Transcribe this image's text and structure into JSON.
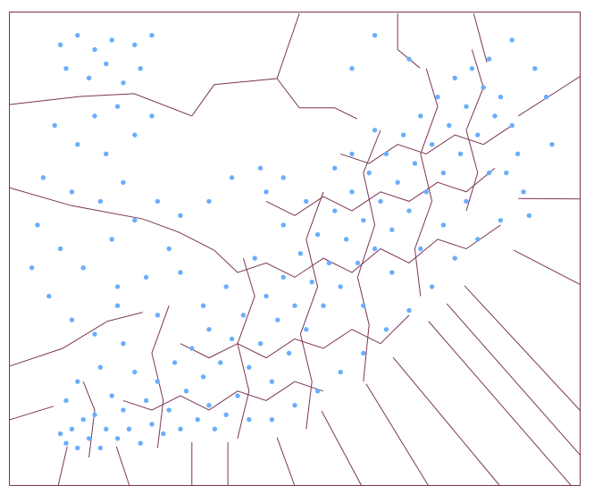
{
  "chart_data": {
    "type": "scatter",
    "title": "",
    "xlabel": "",
    "ylabel": "",
    "xlim": [
      0,
      100
    ],
    "ylim": [
      0,
      100
    ],
    "grid": false,
    "axes_visible": false,
    "overlay": "voronoi-cell-boundaries",
    "colors": {
      "points": "#6aaefc",
      "edges": "#7b3559",
      "frame": "#7b3559"
    },
    "points": [
      [
        10,
        9
      ],
      [
        12,
        8
      ],
      [
        14,
        10
      ],
      [
        11,
        12
      ],
      [
        16,
        8
      ],
      [
        9,
        11
      ],
      [
        13,
        14
      ],
      [
        17,
        12
      ],
      [
        19,
        10
      ],
      [
        15,
        15
      ],
      [
        21,
        12
      ],
      [
        23,
        9
      ],
      [
        20,
        16
      ],
      [
        25,
        13
      ],
      [
        18,
        19
      ],
      [
        24,
        18
      ],
      [
        27,
        11
      ],
      [
        28,
        16
      ],
      [
        30,
        12
      ],
      [
        26,
        22
      ],
      [
        31,
        20
      ],
      [
        33,
        14
      ],
      [
        35,
        17
      ],
      [
        22,
        24
      ],
      [
        29,
        26
      ],
      [
        34,
        23
      ],
      [
        36,
        12
      ],
      [
        38,
        15
      ],
      [
        32,
        29
      ],
      [
        37,
        26
      ],
      [
        40,
        19
      ],
      [
        42,
        14
      ],
      [
        39,
        31
      ],
      [
        35,
        33
      ],
      [
        42,
        25
      ],
      [
        44,
        30
      ],
      [
        41,
        36
      ],
      [
        46,
        22
      ],
      [
        47,
        35
      ],
      [
        45,
        40
      ],
      [
        49,
        28
      ],
      [
        50,
        38
      ],
      [
        48,
        44
      ],
      [
        52,
        33
      ],
      [
        53,
        43
      ],
      [
        51,
        49
      ],
      [
        55,
        38
      ],
      [
        56,
        47
      ],
      [
        54,
        53
      ],
      [
        58,
        42
      ],
      [
        59,
        52
      ],
      [
        57,
        58
      ],
      [
        61,
        47
      ],
      [
        62,
        56
      ],
      [
        60,
        62
      ],
      [
        64,
        50
      ],
      [
        65,
        60
      ],
      [
        63,
        66
      ],
      [
        67,
        54
      ],
      [
        68,
        64
      ],
      [
        66,
        70
      ],
      [
        70,
        58
      ],
      [
        71,
        68
      ],
      [
        69,
        74
      ],
      [
        73,
        62
      ],
      [
        74,
        72
      ],
      [
        72,
        78
      ],
      [
        76,
        66
      ],
      [
        77,
        76
      ],
      [
        75,
        82
      ],
      [
        79,
        70
      ],
      [
        80,
        80
      ],
      [
        78,
        86
      ],
      [
        82,
        74
      ],
      [
        83,
        84
      ],
      [
        81,
        88
      ],
      [
        85,
        78
      ],
      [
        84,
        90
      ],
      [
        86,
        82
      ],
      [
        88,
        76
      ],
      [
        89,
        70
      ],
      [
        87,
        66
      ],
      [
        90,
        62
      ],
      [
        91,
        57
      ],
      [
        86,
        56
      ],
      [
        82,
        52
      ],
      [
        78,
        48
      ],
      [
        74,
        42
      ],
      [
        70,
        37
      ],
      [
        66,
        33
      ],
      [
        62,
        28
      ],
      [
        58,
        24
      ],
      [
        54,
        20
      ],
      [
        50,
        17
      ],
      [
        46,
        14
      ],
      [
        62,
        38
      ],
      [
        67,
        45
      ],
      [
        72,
        50
      ],
      [
        76,
        55
      ],
      [
        80,
        60
      ],
      [
        84,
        66
      ],
      [
        43,
        48
      ],
      [
        38,
        42
      ],
      [
        34,
        38
      ],
      [
        30,
        45
      ],
      [
        26,
        36
      ],
      [
        28,
        50
      ],
      [
        24,
        44
      ],
      [
        20,
        30
      ],
      [
        16,
        25
      ],
      [
        19,
        38
      ],
      [
        12,
        22
      ],
      [
        10,
        18
      ],
      [
        57,
        67
      ],
      [
        52,
        60
      ],
      [
        48,
        55
      ],
      [
        45,
        62
      ],
      [
        64,
        75
      ],
      [
        60,
        70
      ],
      [
        9,
        93
      ],
      [
        12,
        95
      ],
      [
        15,
        92
      ],
      [
        18,
        94
      ],
      [
        22,
        93
      ],
      [
        25,
        95
      ],
      [
        10,
        88
      ],
      [
        14,
        86
      ],
      [
        17,
        89
      ],
      [
        20,
        85
      ],
      [
        23,
        88
      ],
      [
        19,
        80
      ],
      [
        15,
        78
      ],
      [
        8,
        76
      ],
      [
        12,
        72
      ],
      [
        17,
        70
      ],
      [
        22,
        74
      ],
      [
        25,
        78
      ],
      [
        6,
        65
      ],
      [
        11,
        62
      ],
      [
        16,
        60
      ],
      [
        20,
        64
      ],
      [
        5,
        55
      ],
      [
        9,
        50
      ],
      [
        13,
        46
      ],
      [
        18,
        52
      ],
      [
        22,
        56
      ],
      [
        7,
        40
      ],
      [
        11,
        35
      ],
      [
        15,
        32
      ],
      [
        19,
        42
      ],
      [
        4,
        46
      ],
      [
        26,
        60
      ],
      [
        30,
        57
      ],
      [
        35,
        60
      ],
      [
        39,
        65
      ],
      [
        44,
        67
      ],
      [
        48,
        65
      ],
      [
        88,
        94
      ],
      [
        92,
        88
      ],
      [
        94,
        82
      ],
      [
        95,
        72
      ],
      [
        64,
        95
      ],
      [
        70,
        90
      ],
      [
        60,
        88
      ]
    ],
    "edges": [
      [
        [
          0,
          80.4
        ],
        [
          12.5,
          82.1
        ],
        [
          21.9,
          82.7
        ],
        [
          32,
          78
        ],
        [
          35.9,
          84.6
        ],
        [
          46.9,
          85.9
        ],
        [
          50.8,
          99.6
        ]
      ],
      [
        [
          46.9,
          85.9
        ],
        [
          50.8,
          79.7
        ],
        [
          57,
          79.7
        ],
        [
          60.9,
          77.4
        ]
      ],
      [
        [
          0,
          62.9
        ],
        [
          10.9,
          59.1
        ],
        [
          23.4,
          56.3
        ],
        [
          29.7,
          53.5
        ],
        [
          35.9,
          49.7
        ]
      ],
      [
        [
          0,
          25.2
        ],
        [
          9.4,
          29
        ],
        [
          17.2,
          34.7
        ],
        [
          23.4,
          36.6
        ]
      ],
      [
        [
          0,
          13.9
        ],
        [
          7.8,
          16.8
        ]
      ],
      [
        [
          68,
          99.6
        ],
        [
          68,
          92
        ],
        [
          71.9,
          88.1
        ]
      ],
      [
        [
          81.3,
          99.6
        ],
        [
          83.6,
          89.3
        ]
      ],
      [
        [
          100,
          86.4
        ],
        [
          89.1,
          78
        ]
      ],
      [
        [
          100,
          60.5
        ],
        [
          89.1,
          60.6
        ]
      ],
      [
        [
          100,
          42.4
        ],
        [
          88.3,
          49.7
        ]
      ],
      [
        [
          100,
          15.8
        ],
        [
          79.7,
          42.2
        ]
      ],
      [
        [
          100,
          6.4
        ],
        [
          76.6,
          38.4
        ]
      ],
      [
        [
          98.4,
          0
        ],
        [
          73.4,
          34.7
        ]
      ],
      [
        [
          85.9,
          0
        ],
        [
          67.2,
          27.1
        ]
      ],
      [
        [
          73.4,
          0
        ],
        [
          62.5,
          21.5
        ]
      ],
      [
        [
          61.7,
          0
        ],
        [
          54.7,
          15.8
        ]
      ],
      [
        [
          50,
          0
        ],
        [
          46.9,
          10.2
        ]
      ],
      [
        [
          8.6,
          0
        ],
        [
          10.2,
          8.3
        ]
      ],
      [
        [
          21.1,
          0
        ],
        [
          18.8,
          8.3
        ]
      ],
      [
        [
          32,
          0
        ],
        [
          32,
          9.2
        ]
      ],
      [
        [
          38.3,
          0
        ],
        [
          38.3,
          9.2
        ]
      ],
      [
        [
          35.9,
          49.7
        ],
        [
          40,
          45
        ],
        [
          45,
          47
        ],
        [
          50,
          44
        ],
        [
          55,
          48
        ],
        [
          60,
          45
        ],
        [
          65,
          50
        ],
        [
          70,
          47
        ],
        [
          75,
          52
        ],
        [
          80,
          50
        ],
        [
          86,
          55
        ]
      ],
      [
        [
          30,
          30
        ],
        [
          35,
          27
        ],
        [
          40,
          30
        ],
        [
          45,
          27
        ],
        [
          50,
          31
        ],
        [
          55,
          29
        ],
        [
          60,
          33
        ],
        [
          65,
          30
        ],
        [
          70,
          36
        ]
      ],
      [
        [
          20,
          18
        ],
        [
          25,
          16
        ],
        [
          30,
          19
        ],
        [
          35,
          16
        ],
        [
          40,
          20
        ],
        [
          45,
          18
        ],
        [
          50,
          22
        ],
        [
          55,
          20
        ]
      ],
      [
        [
          45,
          60
        ],
        [
          50,
          57
        ],
        [
          55,
          61
        ],
        [
          60,
          58
        ],
        [
          65,
          62
        ],
        [
          70,
          60
        ],
        [
          75,
          64
        ],
        [
          80,
          62
        ],
        [
          85,
          67
        ]
      ],
      [
        [
          58,
          70
        ],
        [
          63,
          68
        ],
        [
          68,
          72
        ],
        [
          73,
          70
        ],
        [
          78,
          74
        ],
        [
          83,
          72
        ],
        [
          88,
          76
        ]
      ],
      [
        [
          40,
          10
        ],
        [
          42,
          20
        ],
        [
          40,
          30
        ],
        [
          43,
          40
        ],
        [
          41,
          48
        ]
      ],
      [
        [
          52,
          12
        ],
        [
          53,
          22
        ],
        [
          51,
          32
        ],
        [
          54,
          42
        ],
        [
          52,
          52
        ],
        [
          55,
          62
        ]
      ],
      [
        [
          62,
          22
        ],
        [
          63,
          34
        ],
        [
          61,
          44
        ],
        [
          64,
          55
        ],
        [
          62,
          66
        ],
        [
          65,
          75
        ]
      ],
      [
        [
          72,
          40
        ],
        [
          71,
          50
        ],
        [
          74,
          60
        ],
        [
          72,
          70
        ],
        [
          75,
          80
        ],
        [
          73,
          88
        ]
      ],
      [
        [
          80,
          58
        ],
        [
          82,
          66
        ],
        [
          80,
          75
        ],
        [
          83,
          84
        ],
        [
          81,
          92
        ]
      ],
      [
        [
          26,
          8
        ],
        [
          27,
          18
        ],
        [
          25,
          28
        ],
        [
          28,
          38
        ]
      ],
      [
        [
          14,
          6
        ],
        [
          15,
          16
        ],
        [
          13,
          22
        ]
      ]
    ]
  }
}
